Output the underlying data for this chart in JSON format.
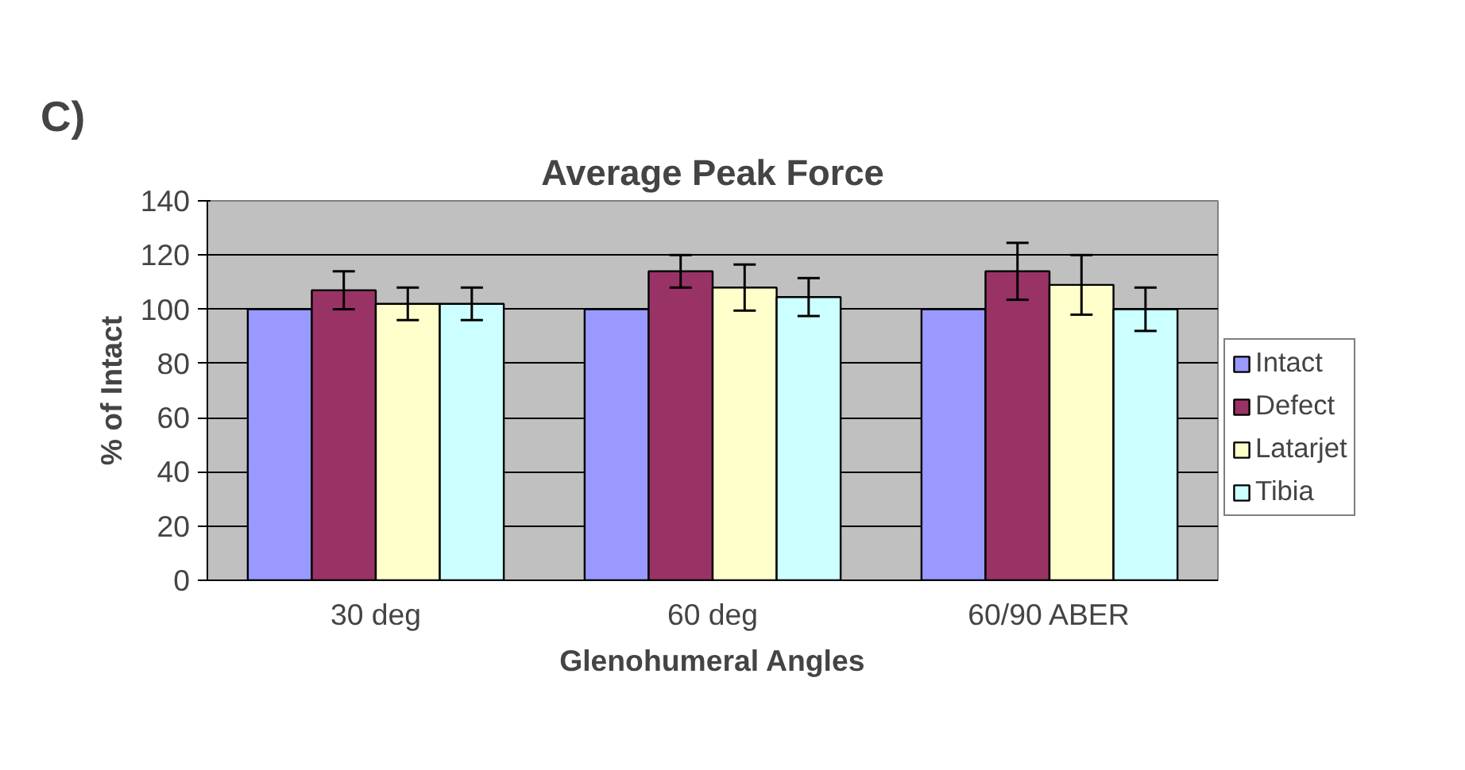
{
  "chart_data": {
    "type": "bar",
    "title": "Average Peak Force",
    "xlabel": "Glenohumeral Angles",
    "ylabel": "% of Intact",
    "annotations": [
      "C)"
    ],
    "categories": [
      "30 deg",
      "60 deg",
      "60/90 ABER"
    ],
    "series": [
      {
        "name": "Intact",
        "color": "#9999ff",
        "values": [
          100,
          100,
          100
        ]
      },
      {
        "name": "Defect",
        "color": "#993366",
        "values": [
          107,
          114,
          114
        ],
        "errors": [
          7,
          6,
          10.5
        ]
      },
      {
        "name": "Latarjet",
        "color": "#ffffcc",
        "values": [
          102,
          108,
          109
        ],
        "errors": [
          6,
          8.5,
          11
        ]
      },
      {
        "name": "Tibia",
        "color": "#ccffff",
        "values": [
          102,
          104.5,
          100
        ],
        "errors": [
          6,
          7,
          8
        ]
      }
    ],
    "ylim": [
      0,
      140
    ],
    "yticks": [
      0,
      20,
      40,
      60,
      80,
      100,
      120,
      140
    ],
    "grid": "y",
    "legend": "right"
  }
}
